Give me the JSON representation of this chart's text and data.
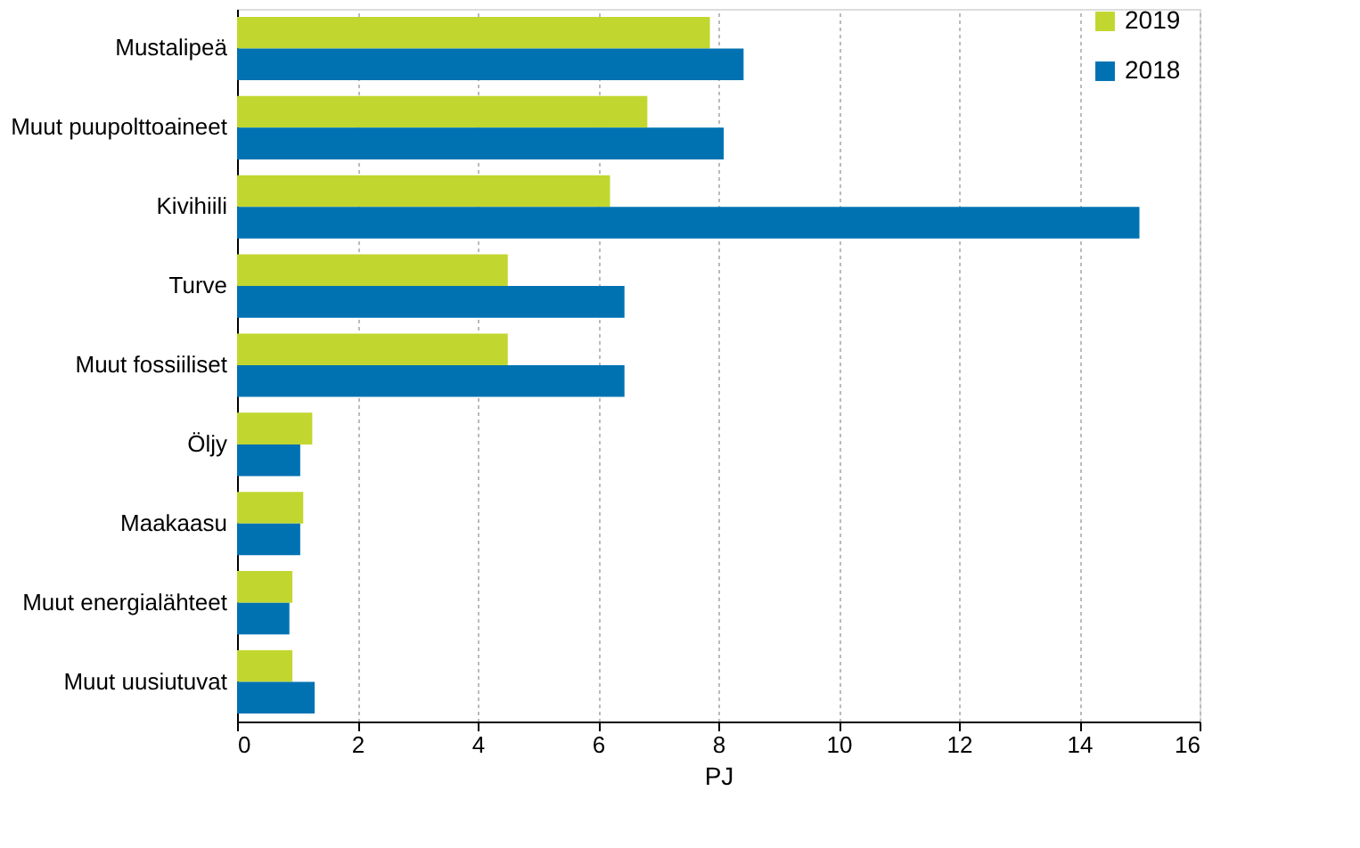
{
  "chart_data": {
    "type": "bar",
    "orientation": "horizontal",
    "xlabel": "PJ",
    "categories": [
      "Mustalipeä",
      "Muut puupolttoaineet",
      "Kivihiili",
      "Turve",
      "Muut fossiiliset",
      "Öljy",
      "Maakaasu",
      "Muut energialähteet",
      "Muut uusiutuvat"
    ],
    "series": [
      {
        "name": "2019",
        "color": "#c1d72f",
        "values": [
          7.86,
          6.82,
          6.2,
          4.5,
          4.5,
          1.25,
          1.1,
          0.92,
          0.92
        ]
      },
      {
        "name": "2018",
        "color": "#0072b2",
        "values": [
          8.42,
          8.09,
          15.0,
          6.44,
          6.44,
          1.05,
          1.05,
          0.87,
          1.29
        ]
      }
    ],
    "xlim": [
      0,
      16
    ],
    "xticks": [
      0,
      2,
      4,
      6,
      8,
      10,
      12,
      14,
      16
    ],
    "grid": "x",
    "legend": "right"
  }
}
